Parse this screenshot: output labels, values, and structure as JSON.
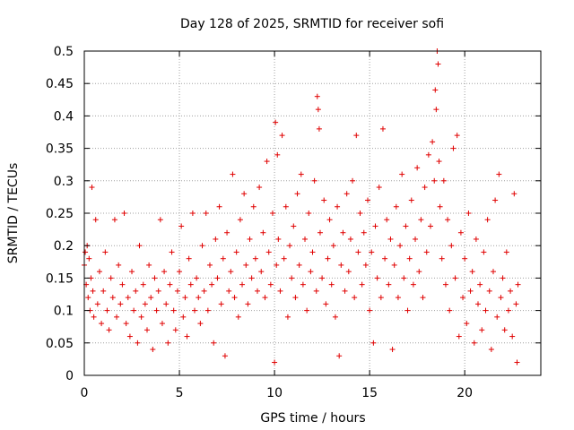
{
  "chart_data": {
    "type": "scatter",
    "title": "Day 128 of 2025, SRMTID for receiver sofi",
    "xlabel": "GPS time / hours",
    "ylabel": "SRMTID / TECUs",
    "xlim": [
      0,
      24
    ],
    "ylim": [
      0,
      0.5
    ],
    "xticks": [
      0,
      5,
      10,
      15,
      20
    ],
    "xtick_labels": [
      "0",
      "5",
      "10",
      "15",
      "20"
    ],
    "yticks": [
      0,
      0.05,
      0.1,
      0.15,
      0.2,
      0.25,
      0.3,
      0.35,
      0.4,
      0.45,
      0.5
    ],
    "ytick_labels": [
      "0",
      "0.05",
      "0.1",
      "0.15",
      "0.2",
      "0.25",
      "0.3",
      "0.35",
      "0.4",
      "0.45",
      "0.5"
    ],
    "grid": true,
    "marker": "+",
    "color": "#e00000",
    "series": [
      {
        "name": "SRMTID",
        "points": [
          [
            0.0,
            0.17
          ],
          [
            0.05,
            0.19
          ],
          [
            0.1,
            0.14
          ],
          [
            0.15,
            0.2
          ],
          [
            0.2,
            0.12
          ],
          [
            0.25,
            0.18
          ],
          [
            0.3,
            0.1
          ],
          [
            0.35,
            0.15
          ],
          [
            0.4,
            0.29
          ],
          [
            0.45,
            0.13
          ],
          [
            0.5,
            0.09
          ],
          [
            0.6,
            0.24
          ],
          [
            0.7,
            0.11
          ],
          [
            0.8,
            0.16
          ],
          [
            0.9,
            0.08
          ],
          [
            1.0,
            0.13
          ],
          [
            1.1,
            0.19
          ],
          [
            1.2,
            0.1
          ],
          [
            1.3,
            0.07
          ],
          [
            1.4,
            0.15
          ],
          [
            1.5,
            0.12
          ],
          [
            1.6,
            0.24
          ],
          [
            1.7,
            0.09
          ],
          [
            1.8,
            0.17
          ],
          [
            1.9,
            0.11
          ],
          [
            2.0,
            0.14
          ],
          [
            2.1,
            0.25
          ],
          [
            2.2,
            0.08
          ],
          [
            2.3,
            0.12
          ],
          [
            2.4,
            0.06
          ],
          [
            2.5,
            0.16
          ],
          [
            2.6,
            0.1
          ],
          [
            2.7,
            0.13
          ],
          [
            2.8,
            0.05
          ],
          [
            2.9,
            0.2
          ],
          [
            3.0,
            0.09
          ],
          [
            3.1,
            0.14
          ],
          [
            3.2,
            0.11
          ],
          [
            3.3,
            0.07
          ],
          [
            3.4,
            0.17
          ],
          [
            3.5,
            0.12
          ],
          [
            3.6,
            0.04
          ],
          [
            3.7,
            0.15
          ],
          [
            3.8,
            0.1
          ],
          [
            3.9,
            0.13
          ],
          [
            4.0,
            0.24
          ],
          [
            4.1,
            0.08
          ],
          [
            4.2,
            0.16
          ],
          [
            4.3,
            0.11
          ],
          [
            4.4,
            0.05
          ],
          [
            4.5,
            0.14
          ],
          [
            4.6,
            0.19
          ],
          [
            4.7,
            0.1
          ],
          [
            4.8,
            0.07
          ],
          [
            4.9,
            0.13
          ],
          [
            5.0,
            0.16
          ],
          [
            5.1,
            0.23
          ],
          [
            5.2,
            0.09
          ],
          [
            5.3,
            0.12
          ],
          [
            5.4,
            0.06
          ],
          [
            5.5,
            0.18
          ],
          [
            5.6,
            0.14
          ],
          [
            5.7,
            0.25
          ],
          [
            5.8,
            0.1
          ],
          [
            5.9,
            0.15
          ],
          [
            6.0,
            0.12
          ],
          [
            6.1,
            0.08
          ],
          [
            6.2,
            0.2
          ],
          [
            6.3,
            0.13
          ],
          [
            6.4,
            0.25
          ],
          [
            6.5,
            0.1
          ],
          [
            6.6,
            0.17
          ],
          [
            6.7,
            0.14
          ],
          [
            6.8,
            0.05
          ],
          [
            6.9,
            0.21
          ],
          [
            7.0,
            0.15
          ],
          [
            7.1,
            0.26
          ],
          [
            7.2,
            0.11
          ],
          [
            7.3,
            0.18
          ],
          [
            7.4,
            0.03
          ],
          [
            7.5,
            0.22
          ],
          [
            7.6,
            0.13
          ],
          [
            7.7,
            0.16
          ],
          [
            7.8,
            0.31
          ],
          [
            7.9,
            0.12
          ],
          [
            8.0,
            0.19
          ],
          [
            8.1,
            0.09
          ],
          [
            8.2,
            0.24
          ],
          [
            8.3,
            0.14
          ],
          [
            8.4,
            0.28
          ],
          [
            8.5,
            0.17
          ],
          [
            8.6,
            0.11
          ],
          [
            8.7,
            0.21
          ],
          [
            8.8,
            0.15
          ],
          [
            8.9,
            0.26
          ],
          [
            9.0,
            0.18
          ],
          [
            9.1,
            0.13
          ],
          [
            9.2,
            0.29
          ],
          [
            9.3,
            0.16
          ],
          [
            9.4,
            0.22
          ],
          [
            9.5,
            0.12
          ],
          [
            9.6,
            0.33
          ],
          [
            9.7,
            0.19
          ],
          [
            9.8,
            0.14
          ],
          [
            9.9,
            0.25
          ],
          [
            10.0,
            0.02
          ],
          [
            10.05,
            0.39
          ],
          [
            10.1,
            0.17
          ],
          [
            10.15,
            0.34
          ],
          [
            10.2,
            0.21
          ],
          [
            10.3,
            0.13
          ],
          [
            10.4,
            0.37
          ],
          [
            10.5,
            0.18
          ],
          [
            10.6,
            0.26
          ],
          [
            10.7,
            0.09
          ],
          [
            10.8,
            0.2
          ],
          [
            10.9,
            0.15
          ],
          [
            11.0,
            0.23
          ],
          [
            11.1,
            0.12
          ],
          [
            11.2,
            0.28
          ],
          [
            11.3,
            0.17
          ],
          [
            11.4,
            0.31
          ],
          [
            11.5,
            0.14
          ],
          [
            11.6,
            0.21
          ],
          [
            11.7,
            0.1
          ],
          [
            11.8,
            0.25
          ],
          [
            11.9,
            0.16
          ],
          [
            12.0,
            0.19
          ],
          [
            12.1,
            0.3
          ],
          [
            12.2,
            0.13
          ],
          [
            12.25,
            0.43
          ],
          [
            12.3,
            0.41
          ],
          [
            12.35,
            0.38
          ],
          [
            12.4,
            0.22
          ],
          [
            12.5,
            0.15
          ],
          [
            12.6,
            0.27
          ],
          [
            12.7,
            0.11
          ],
          [
            12.8,
            0.18
          ],
          [
            12.9,
            0.24
          ],
          [
            13.0,
            0.14
          ],
          [
            13.1,
            0.2
          ],
          [
            13.2,
            0.09
          ],
          [
            13.3,
            0.26
          ],
          [
            13.4,
            0.03
          ],
          [
            13.5,
            0.17
          ],
          [
            13.6,
            0.22
          ],
          [
            13.7,
            0.13
          ],
          [
            13.8,
            0.28
          ],
          [
            13.9,
            0.16
          ],
          [
            14.0,
            0.21
          ],
          [
            14.1,
            0.3
          ],
          [
            14.2,
            0.12
          ],
          [
            14.3,
            0.37
          ],
          [
            14.4,
            0.19
          ],
          [
            14.5,
            0.25
          ],
          [
            14.6,
            0.14
          ],
          [
            14.7,
            0.22
          ],
          [
            14.8,
            0.17
          ],
          [
            14.9,
            0.27
          ],
          [
            15.0,
            0.1
          ],
          [
            15.1,
            0.19
          ],
          [
            15.2,
            0.05
          ],
          [
            15.3,
            0.23
          ],
          [
            15.4,
            0.15
          ],
          [
            15.5,
            0.29
          ],
          [
            15.6,
            0.12
          ],
          [
            15.7,
            0.38
          ],
          [
            15.8,
            0.18
          ],
          [
            15.9,
            0.24
          ],
          [
            16.0,
            0.14
          ],
          [
            16.1,
            0.21
          ],
          [
            16.2,
            0.04
          ],
          [
            16.3,
            0.17
          ],
          [
            16.4,
            0.26
          ],
          [
            16.5,
            0.12
          ],
          [
            16.6,
            0.2
          ],
          [
            16.7,
            0.31
          ],
          [
            16.8,
            0.15
          ],
          [
            16.9,
            0.23
          ],
          [
            17.0,
            0.1
          ],
          [
            17.1,
            0.18
          ],
          [
            17.2,
            0.27
          ],
          [
            17.3,
            0.14
          ],
          [
            17.4,
            0.21
          ],
          [
            17.5,
            0.32
          ],
          [
            17.6,
            0.16
          ],
          [
            17.7,
            0.24
          ],
          [
            17.8,
            0.12
          ],
          [
            17.9,
            0.29
          ],
          [
            18.0,
            0.19
          ],
          [
            18.1,
            0.34
          ],
          [
            18.2,
            0.23
          ],
          [
            18.3,
            0.36
          ],
          [
            18.4,
            0.3
          ],
          [
            18.45,
            0.44
          ],
          [
            18.5,
            0.41
          ],
          [
            18.55,
            0.5
          ],
          [
            18.6,
            0.48
          ],
          [
            18.65,
            0.33
          ],
          [
            18.7,
            0.26
          ],
          [
            18.8,
            0.18
          ],
          [
            18.9,
            0.3
          ],
          [
            19.0,
            0.14
          ],
          [
            19.1,
            0.24
          ],
          [
            19.2,
            0.1
          ],
          [
            19.3,
            0.2
          ],
          [
            19.4,
            0.35
          ],
          [
            19.5,
            0.15
          ],
          [
            19.6,
            0.37
          ],
          [
            19.7,
            0.06
          ],
          [
            19.8,
            0.22
          ],
          [
            19.9,
            0.12
          ],
          [
            20.0,
            0.18
          ],
          [
            20.1,
            0.08
          ],
          [
            20.2,
            0.25
          ],
          [
            20.3,
            0.13
          ],
          [
            20.4,
            0.16
          ],
          [
            20.5,
            0.05
          ],
          [
            20.6,
            0.21
          ],
          [
            20.7,
            0.11
          ],
          [
            20.8,
            0.14
          ],
          [
            20.9,
            0.07
          ],
          [
            21.0,
            0.19
          ],
          [
            21.1,
            0.1
          ],
          [
            21.2,
            0.24
          ],
          [
            21.3,
            0.13
          ],
          [
            21.4,
            0.04
          ],
          [
            21.5,
            0.16
          ],
          [
            21.6,
            0.27
          ],
          [
            21.7,
            0.09
          ],
          [
            21.8,
            0.31
          ],
          [
            21.9,
            0.12
          ],
          [
            22.0,
            0.15
          ],
          [
            22.1,
            0.07
          ],
          [
            22.2,
            0.19
          ],
          [
            22.3,
            0.1
          ],
          [
            22.4,
            0.13
          ],
          [
            22.5,
            0.06
          ],
          [
            22.6,
            0.28
          ],
          [
            22.7,
            0.11
          ],
          [
            22.75,
            0.02
          ],
          [
            22.8,
            0.14
          ]
        ]
      }
    ]
  }
}
